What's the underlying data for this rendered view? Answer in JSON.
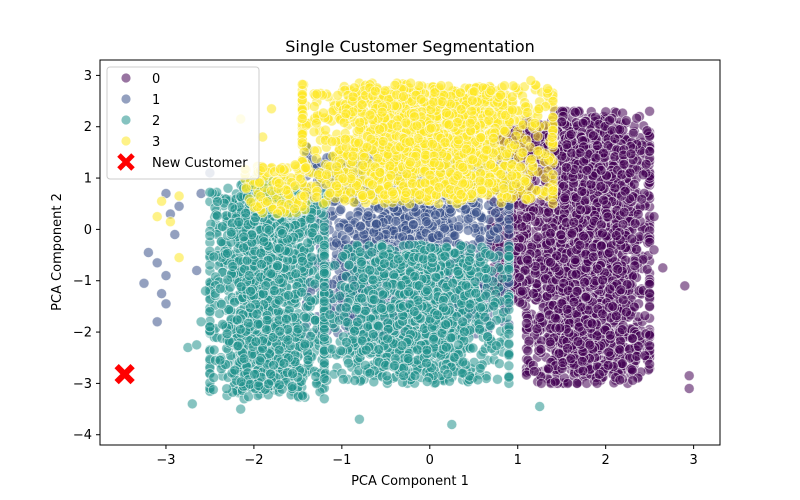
{
  "chart_data": {
    "type": "scatter",
    "title": "Single Customer Segmentation",
    "xlabel": "PCA Component 1",
    "ylabel": "PCA Component 2",
    "xlim": [
      -3.75,
      3.3
    ],
    "ylim": [
      -4.2,
      3.3
    ],
    "xticks": [
      -3,
      -2,
      -1,
      0,
      1,
      2,
      3
    ],
    "yticks": [
      -4,
      -3,
      -2,
      -1,
      0,
      1,
      2,
      3
    ],
    "grid": false,
    "legend_position": "top-left",
    "series": [
      {
        "name": "0",
        "color": "#440154",
        "clouds": [
          {
            "x": [
              1.1,
              2.5
            ],
            "y": [
              -3.0,
              2.3
            ],
            "n": 2600
          },
          {
            "x": [
              0.7,
              1.2
            ],
            "y": [
              -1.5,
              2.1
            ],
            "n": 380
          }
        ],
        "points": [
          [
            2.9,
            -1.1
          ],
          [
            2.95,
            -2.85
          ],
          [
            2.95,
            -3.1
          ],
          [
            2.65,
            -0.75
          ],
          [
            2.55,
            0.25
          ],
          [
            2.55,
            -0.4
          ]
        ]
      },
      {
        "name": "1",
        "color": "#3b528b",
        "clouds": [
          {
            "x": [
              -1.4,
              0.9
            ],
            "y": [
              -2.1,
              1.6
            ],
            "n": 1500
          }
        ],
        "points": [
          [
            -3.1,
            -0.65
          ],
          [
            -3.0,
            -0.9
          ],
          [
            -3.05,
            -1.25
          ],
          [
            -3.0,
            -1.45
          ],
          [
            -3.1,
            -1.8
          ],
          [
            -3.25,
            -1.05
          ],
          [
            -3.2,
            -0.45
          ],
          [
            -2.95,
            0.3
          ],
          [
            -3.0,
            0.7
          ],
          [
            -2.9,
            -0.1
          ],
          [
            -2.85,
            0.45
          ],
          [
            -2.65,
            -0.8
          ],
          [
            -2.6,
            0.7
          ],
          [
            -2.5,
            1.1
          ]
        ]
      },
      {
        "name": "2",
        "color": "#21918c",
        "clouds": [
          {
            "x": [
              -2.5,
              -1.2
            ],
            "y": [
              -3.3,
              0.8
            ],
            "n": 1500
          },
          {
            "x": [
              -1.2,
              0.9
            ],
            "y": [
              -3.0,
              -0.3
            ],
            "n": 1300
          },
          {
            "x": [
              -2.3,
              -1.6
            ],
            "y": [
              -0.5,
              1.0
            ],
            "n": 150
          }
        ],
        "points": [
          [
            -2.7,
            -3.4
          ],
          [
            -2.75,
            -2.3
          ],
          [
            -2.6,
            -1.8
          ],
          [
            -2.55,
            -1.2
          ],
          [
            0.25,
            -3.8
          ],
          [
            -0.8,
            -3.7
          ],
          [
            1.25,
            -3.45
          ],
          [
            -2.15,
            -3.5
          ],
          [
            -2.65,
            -2.25
          ]
        ]
      },
      {
        "name": "3",
        "color": "#fde725",
        "clouds": [
          {
            "x": [
              -1.45,
              1.4
            ],
            "y": [
              0.5,
              2.85
            ],
            "n": 1800
          },
          {
            "x": [
              -2.1,
              -1.4
            ],
            "y": [
              0.3,
              1.3
            ],
            "n": 120
          }
        ],
        "points": [
          [
            -3.05,
            0.55
          ],
          [
            -3.1,
            0.25
          ],
          [
            -2.95,
            0.15
          ],
          [
            -2.85,
            0.65
          ],
          [
            -2.85,
            -0.55
          ],
          [
            -2.15,
            2.15
          ],
          [
            -1.9,
            1.8
          ],
          [
            -1.8,
            2.35
          ],
          [
            1.15,
            2.9
          ],
          [
            0.85,
            2.8
          ]
        ]
      }
    ],
    "highlight": {
      "name": "New Customer",
      "x": -3.47,
      "y": -2.82,
      "color": "#ff0000",
      "marker": "x-cross"
    }
  }
}
